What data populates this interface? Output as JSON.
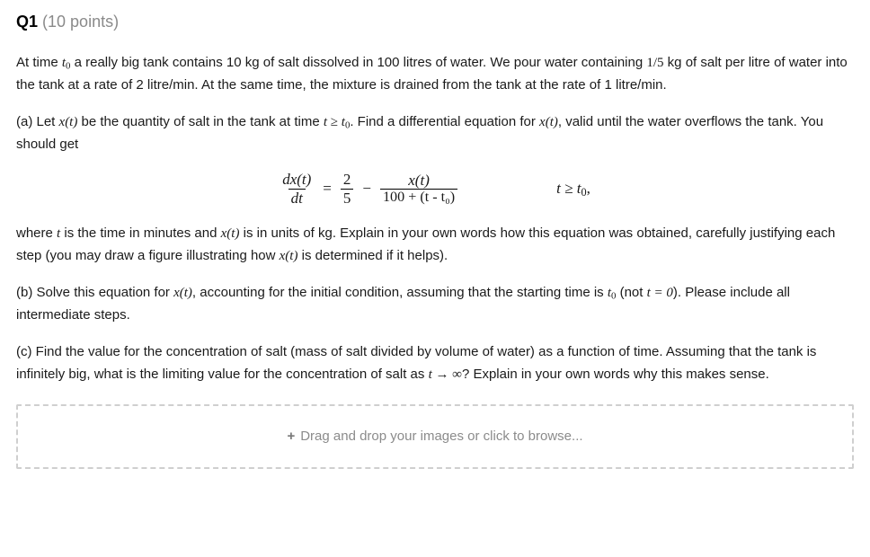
{
  "header": {
    "qnum": "Q1",
    "points": "(10 points)"
  },
  "intro": {
    "pre_t0": "At time ",
    "t0": "t",
    "t0_sub": "0",
    "post_t0": " a really big tank contains 10 kg of salt dissolved in 100 litres of water. We pour water containing ",
    "frac": "1/5",
    "post_frac": " kg of salt per litre of water into the tank at a rate of 2 litre/min. At the same time, the mixture is drained from the tank at the rate of 1 litre/min."
  },
  "partA": {
    "pre": "(a) Let ",
    "xt": "x(t)",
    "mid1": " be the quantity of salt in the tank at time ",
    "t_ge": "t ≥ t",
    "t_ge_sub": "0",
    "mid2": ". Find a differential equation for ",
    "xt2": "x(t)",
    "post": ", valid until the water overflows the tank. You should get"
  },
  "equation": {
    "lhs_num": "dx(t)",
    "lhs_den": "dt",
    "eq": "=",
    "f1_num": "2",
    "f1_den": "5",
    "minus": "−",
    "f2_num": "x(t)",
    "f2_den_hand": "100 + (t - t₀)",
    "side": "t ≥ t",
    "side_sub": "0",
    "side_comma": ","
  },
  "partA_post": {
    "pre": "where ",
    "t": "t",
    "mid1": " is the time in minutes and ",
    "xt": "x(t)",
    "mid2": " is in units of kg. Explain in your own words how this equation was obtained, carefully justifying each step (you may draw a figure illustrating how ",
    "xt2": "x(t)",
    "post": " is determined if it helps)."
  },
  "partB": {
    "pre": "(b) Solve this equation for ",
    "xt": "x(t)",
    "mid": ", accounting for the initial condition, assuming that the starting time is ",
    "t0": "t",
    "t0_sub": "0",
    "mid2": " (not ",
    "teq0": "t = 0",
    "post": "). Please include all intermediate steps."
  },
  "partC": {
    "pre": "(c) Find the value for the concentration of salt (mass of salt divided by volume of water) as a function of time. Assuming that the tank is infinitely big, what is the limiting value for the concentration of salt as ",
    "lim": "t → ∞",
    "post": "? Explain in your own words why this makes sense."
  },
  "upload": {
    "plus": "+",
    "text": "Drag and drop your images or click to browse..."
  }
}
